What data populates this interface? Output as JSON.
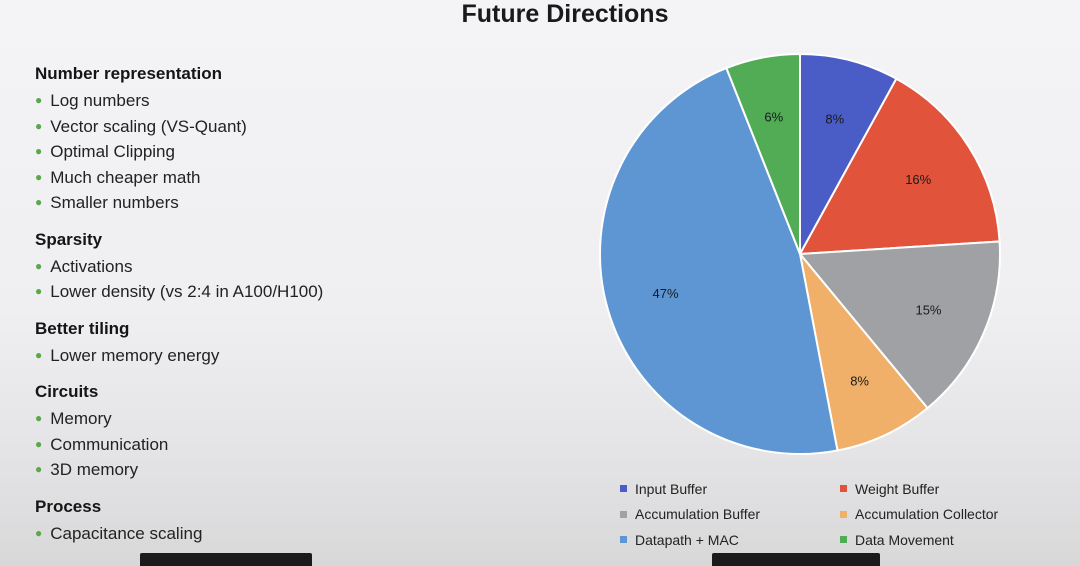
{
  "slide": {
    "title": "Future Directions"
  },
  "outline": [
    {
      "heading": "Number representation",
      "bullets": [
        "Log numbers",
        "Vector scaling (VS-Quant)",
        "Optimal Clipping",
        "Much cheaper math",
        "Smaller numbers"
      ]
    },
    {
      "heading": "Sparsity",
      "bullets": [
        "Activations",
        "Lower density (vs 2:4 in A100/H100)"
      ]
    },
    {
      "heading": "Better tiling",
      "bullets": [
        "Lower memory energy"
      ]
    },
    {
      "heading": "Circuits",
      "bullets": [
        "Memory",
        "Communication",
        "3D memory"
      ]
    },
    {
      "heading": "Process",
      "bullets": [
        "Capacitance scaling"
      ]
    }
  ],
  "chart_data": {
    "type": "pie",
    "start": "12 o'clock, clockwise",
    "slices": [
      {
        "name": "Input Buffer",
        "value": 8,
        "label": "8%",
        "color": "#4a5cc5"
      },
      {
        "name": "Weight Buffer",
        "value": 16,
        "label": "16%",
        "color": "#e1533b"
      },
      {
        "name": "Accumulation Buffer",
        "value": 15,
        "label": "15%",
        "color": "#9fa1a4"
      },
      {
        "name": "Accumulation Collector",
        "value": 8,
        "label": "8%",
        "color": "#f0b06a"
      },
      {
        "name": "Datapath + MAC",
        "value": 47,
        "label": "47%",
        "color": "#5d96d3"
      },
      {
        "name": "Data Movement",
        "value": 6,
        "label": "6%",
        "color": "#52ac55"
      }
    ],
    "legend": {
      "placement": "bottom",
      "order": [
        "Input Buffer",
        "Weight Buffer",
        "Accumulation Buffer",
        "Accumulation Collector",
        "Datapath + MAC",
        "Data Movement"
      ]
    }
  }
}
